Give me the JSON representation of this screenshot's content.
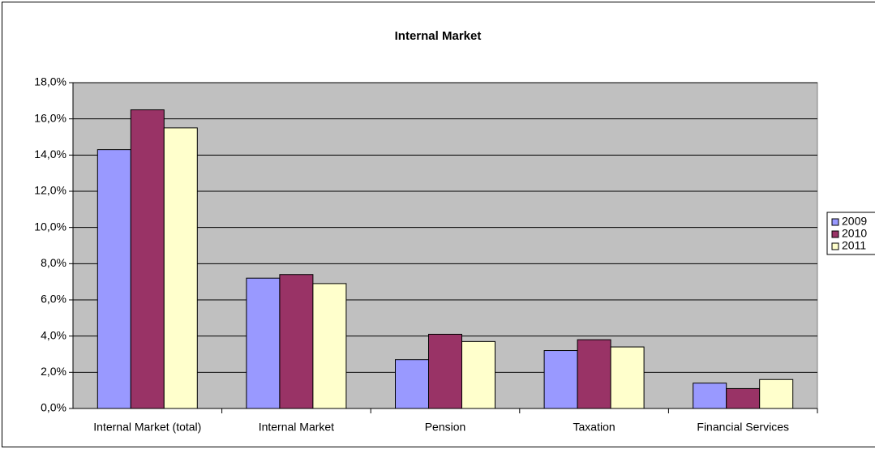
{
  "chart_data": {
    "type": "bar",
    "title": "Internal Market",
    "categories": [
      "Internal Market (total)",
      "Internal Market",
      "Pension",
      "Taxation",
      "Financial Services"
    ],
    "series": [
      {
        "name": "2009",
        "color": "#9999ff",
        "values": [
          14.3,
          7.2,
          2.7,
          3.2,
          1.4
        ]
      },
      {
        "name": "2010",
        "color": "#993366",
        "values": [
          16.5,
          7.4,
          4.1,
          3.8,
          1.1
        ]
      },
      {
        "name": "2011",
        "color": "#ffffcc",
        "values": [
          15.5,
          6.9,
          3.7,
          3.4,
          1.6
        ]
      }
    ],
    "ylim": [
      0,
      18
    ],
    "yticks": [
      {
        "value": 0,
        "label": "0,0%"
      },
      {
        "value": 2,
        "label": "2,0%"
      },
      {
        "value": 4,
        "label": "4,0%"
      },
      {
        "value": 6,
        "label": "6,0%"
      },
      {
        "value": 8,
        "label": "8,0%"
      },
      {
        "value": 10,
        "label": "10,0%"
      },
      {
        "value": 12,
        "label": "12,0%"
      },
      {
        "value": 14,
        "label": "14,0%"
      },
      {
        "value": 16,
        "label": "16,0%"
      },
      {
        "value": 18,
        "label": "18,0%"
      }
    ],
    "grid": true,
    "plot_color": "#c0c0c0",
    "legend": "right"
  }
}
